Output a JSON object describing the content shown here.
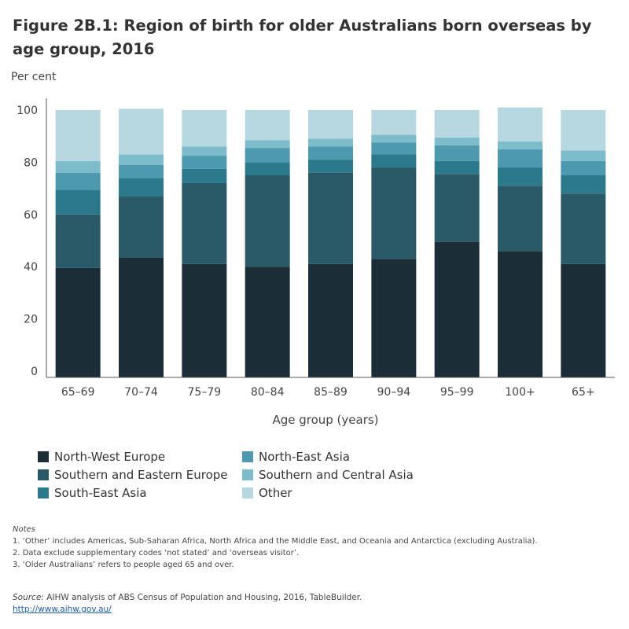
{
  "title": "Figure 2B.1: Region of birth for older Australians born overseas by age group, 2016",
  "y_axis_label": "Per cent",
  "x_axis_label": "Age group (years)",
  "chart_data": {
    "type": "bar",
    "stacked": true,
    "categories": [
      "65–69",
      "70–74",
      "75–79",
      "80–84",
      "85–89",
      "90–94",
      "95–99",
      "100+",
      "65+"
    ],
    "ylim": [
      0,
      100
    ],
    "yticks": [
      0,
      20,
      40,
      60,
      80,
      100
    ],
    "grid": false,
    "legend_position": "bottom",
    "series": [
      {
        "name": "North-West Europe",
        "color": "#1b2e37",
        "values": [
          39.5,
          43.5,
          41,
          40,
          41,
          43,
          49.5,
          46,
          41
        ]
      },
      {
        "name": "Southern and Eastern Europe",
        "color": "#2a5967",
        "values": [
          20.5,
          23.5,
          31,
          35,
          35,
          35,
          26,
          25,
          27
        ]
      },
      {
        "name": "South-East Asia",
        "color": "#2a7a8c",
        "values": [
          9.5,
          7,
          5.5,
          5,
          5,
          5,
          5,
          7,
          7
        ]
      },
      {
        "name": "North-East Asia",
        "color": "#4d9ab0",
        "values": [
          6.5,
          5,
          5,
          5.5,
          5,
          4.5,
          6,
          7,
          5.5
        ]
      },
      {
        "name": "Southern and Central Asia",
        "color": "#7dbccb",
        "values": [
          4.5,
          4,
          3.5,
          3,
          3,
          3,
          3,
          3,
          4
        ]
      },
      {
        "name": "Other",
        "color": "#b7d8e0",
        "values": [
          19.5,
          17.5,
          14,
          11.5,
          11,
          9.5,
          10.5,
          13,
          15.5
        ]
      }
    ]
  },
  "notes": {
    "heading": "Notes",
    "lines": [
      "1. ‘Other’ includes Americas, Sub-Saharan Africa, North Africa and the Middle East, and Oceania and Antarctica (excluding Australia).",
      "2. Data exclude supplementary codes ‘not stated’ and ‘overseas visitor’.",
      "3. ‘Older Australians’ refers to people aged 65 and over."
    ]
  },
  "source": {
    "label": "Source:",
    "text": "AIHW analysis of ABS Census of Population and Housing, 2016, TableBuilder.",
    "link": "http://www.aihw.gov.au/"
  }
}
